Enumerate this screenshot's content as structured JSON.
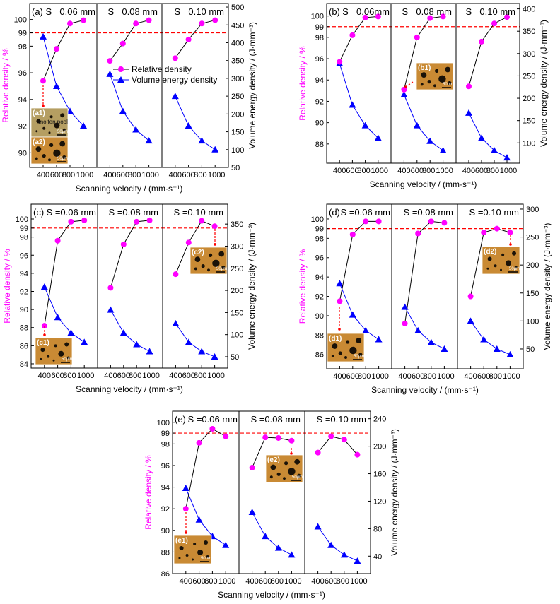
{
  "colors": {
    "relative_density": "#ff00ff",
    "volume_energy_density": "#0000ff",
    "reference_line": "#ff0000",
    "line_rd": "#000000"
  },
  "chart_data": [
    {
      "panel": "(a)",
      "type": "line",
      "xlabel": "Scanning velocity / (mm·s⁻¹)",
      "ylabel": "Relative density / %",
      "y2label": "Volume energy density / (J·mm⁻³)",
      "legend": [
        "Relative density",
        "Volume energy density"
      ],
      "xlim": [
        200,
        1200
      ],
      "xticks": [
        400,
        600,
        800,
        1000
      ],
      "ylim": [
        88.9,
        101.2
      ],
      "yticks": [
        90,
        92,
        94,
        96,
        98,
        99,
        100
      ],
      "y2lim": [
        50,
        510
      ],
      "y2ticks": [
        50,
        100,
        150,
        200,
        250,
        300,
        350,
        400,
        450,
        500
      ],
      "reference_line": 99,
      "subplots": [
        {
          "label": "S =0.06 mm",
          "x": [
            400,
            600,
            800,
            1000
          ],
          "relative_density": [
            95.4,
            97.8,
            99.7,
            99.95
          ],
          "volume_energy_density": [
            417,
            278,
            208,
            167
          ]
        },
        {
          "label": "S =0.08 mm",
          "x": [
            400,
            600,
            800,
            1000
          ],
          "relative_density": [
            96.9,
            98.2,
            99.7,
            99.95
          ],
          "volume_energy_density": [
            312,
            208,
            156,
            125
          ]
        },
        {
          "label": "S =0.10 mm",
          "x": [
            400,
            600,
            800,
            1000
          ],
          "relative_density": [
            97.1,
            98.5,
            99.7,
            99.95
          ],
          "volume_energy_density": [
            250,
            167,
            125,
            100
          ]
        }
      ],
      "insets": [
        {
          "label": "(a1)",
          "text": "molten pool",
          "scale": "50μm"
        },
        {
          "label": "(a2)",
          "scale": "50μm"
        }
      ]
    },
    {
      "panel": "(b)",
      "type": "line",
      "xlabel": "Scanning velocity / (mm·s⁻¹)",
      "ylabel": "Relative density / %",
      "y2label": "Volume energy density / (J·mm⁻³)",
      "xlim": [
        200,
        1200
      ],
      "xticks": [
        400,
        600,
        800,
        1000
      ],
      "ylim": [
        86.2,
        101.17
      ],
      "yticks": [
        88,
        90,
        92,
        94,
        96,
        98,
        99,
        100
      ],
      "y2lim": [
        54.6,
        412
      ],
      "y2ticks": [
        100,
        150,
        200,
        250,
        300,
        350,
        400
      ],
      "reference_line": 99,
      "subplots": [
        {
          "label": "S =0.06mm",
          "x": [
            400,
            600,
            800,
            1000
          ],
          "relative_density": [
            95.7,
            98.2,
            99.85,
            99.95
          ],
          "volume_energy_density": [
            278,
            185,
            139,
            111
          ]
        },
        {
          "label": "S =0.08 mm",
          "x": [
            400,
            600,
            800,
            1000
          ],
          "relative_density": [
            93.1,
            98.0,
            99.8,
            99.95
          ],
          "volume_energy_density": [
            208,
            139,
            104,
            83
          ]
        },
        {
          "label": "S =0.10 mm",
          "x": [
            400,
            600,
            800,
            1000
          ],
          "relative_density": [
            93.4,
            97.6,
            99.3,
            99.9
          ],
          "volume_energy_density": [
            167,
            111,
            83,
            67
          ]
        }
      ],
      "insets": [
        {
          "label": "(b1)",
          "scale": "50μm"
        }
      ]
    },
    {
      "panel": "(c)",
      "type": "line",
      "xlabel": "Scanning velocity / (mm·s⁻¹)",
      "ylabel": "Relative density / %",
      "y2label": "Volume energy density / (J·mm⁻³)",
      "xlim": [
        200,
        1200
      ],
      "xticks": [
        400,
        600,
        800,
        1000
      ],
      "ylim": [
        83.53,
        101.64
      ],
      "yticks": [
        84,
        86,
        88,
        90,
        92,
        94,
        96,
        98,
        99,
        100
      ],
      "y2lim": [
        24.4,
        395
      ],
      "y2ticks": [
        50,
        100,
        150,
        200,
        250,
        300,
        350
      ],
      "reference_line": 99,
      "subplots": [
        {
          "label": "S =0.06 mm",
          "x": [
            400,
            600,
            800,
            1000
          ],
          "relative_density": [
            88.2,
            97.6,
            99.7,
            99.85
          ],
          "volume_energy_density": [
            208,
            139,
            104,
            83
          ]
        },
        {
          "label": "S =0.08 mm",
          "x": [
            400,
            600,
            800,
            1000
          ],
          "relative_density": [
            92.4,
            97.2,
            99.7,
            99.85
          ],
          "volume_energy_density": [
            156,
            104,
            78,
            62
          ]
        },
        {
          "label": "S =0.10 mm",
          "x": [
            400,
            600,
            800,
            1000
          ],
          "relative_density": [
            93.9,
            97.4,
            99.8,
            99.2
          ],
          "volume_energy_density": [
            125,
            83,
            62,
            50
          ]
        }
      ],
      "insets": [
        {
          "label": "(c1)",
          "scale": "50μm"
        },
        {
          "label": "(c2)",
          "scale": "50μm"
        }
      ]
    },
    {
      "panel": "(d)",
      "type": "line",
      "xlabel": "Scanning velocity / (mm·s⁻¹)",
      "ylabel": "Relative density / %",
      "y2label": "Volume energy density / (J·mm⁻³)",
      "xlim": [
        200,
        1200
      ],
      "xticks": [
        400,
        600,
        800,
        1000
      ],
      "ylim": [
        84.52,
        101.53
      ],
      "yticks": [
        86,
        88,
        90,
        92,
        94,
        96,
        98,
        99,
        100
      ],
      "y2lim": [
        14.6,
        308.8
      ],
      "y2ticks": [
        50,
        100,
        150,
        200,
        250,
        300
      ],
      "reference_line": 99,
      "subplots": [
        {
          "label": "S =0.06 mm",
          "x": [
            400,
            600,
            800,
            1000
          ],
          "relative_density": [
            91.5,
            98.4,
            99.75,
            99.75
          ],
          "volume_energy_density": [
            167,
            111,
            83,
            67
          ]
        },
        {
          "label": "S =0.08 mm",
          "x": [
            400,
            600,
            800,
            1000
          ],
          "relative_density": [
            89.2,
            98.5,
            99.75,
            99.6
          ],
          "volume_energy_density": [
            125,
            83,
            62,
            50
          ]
        },
        {
          "label": "S =0.10 mm",
          "x": [
            400,
            600,
            800,
            1000
          ],
          "relative_density": [
            92.0,
            98.6,
            99.0,
            98.6
          ],
          "volume_energy_density": [
            100,
            67,
            50,
            40
          ]
        }
      ],
      "insets": [
        {
          "label": "(d1)",
          "scale": "50μm"
        },
        {
          "label": "(d2)",
          "scale": "50μm"
        }
      ]
    },
    {
      "panel": "(e)",
      "type": "line",
      "xlabel": "Scanning velocity / (mm·s⁻¹)",
      "ylabel": "Relative density / %",
      "y2label": "Volume energy density / (J·mm⁻³)",
      "xlim": [
        200,
        1200
      ],
      "xticks": [
        400,
        600,
        800,
        1000
      ],
      "ylim": [
        86,
        101.03
      ],
      "yticks": [
        86,
        88,
        90,
        92,
        94,
        96,
        98,
        99,
        100
      ],
      "y2lim": [
        14.6,
        251
      ],
      "y2ticks": [
        40,
        80,
        120,
        160,
        200,
        240
      ],
      "reference_line": 99,
      "subplots": [
        {
          "label": "S =0.06 mm",
          "x": [
            400,
            600,
            800,
            1000
          ],
          "relative_density": [
            92.0,
            98.1,
            99.4,
            98.7
          ],
          "volume_energy_density": [
            139,
            93,
            69,
            56
          ]
        },
        {
          "label": "S =0.08 mm",
          "x": [
            400,
            600,
            800,
            1000
          ],
          "relative_density": [
            95.8,
            98.6,
            98.55,
            98.3
          ],
          "volume_energy_density": [
            104,
            69,
            52,
            42
          ]
        },
        {
          "label": "S =0.10 mm",
          "x": [
            400,
            600,
            800,
            1000
          ],
          "relative_density": [
            97.2,
            98.7,
            98.4,
            97.0
          ],
          "volume_energy_density": [
            83,
            56,
            42,
            33
          ]
        }
      ],
      "insets": [
        {
          "label": "(e1)",
          "scale": "50μm"
        },
        {
          "label": "(e2)",
          "scale": "50μm"
        }
      ]
    }
  ]
}
